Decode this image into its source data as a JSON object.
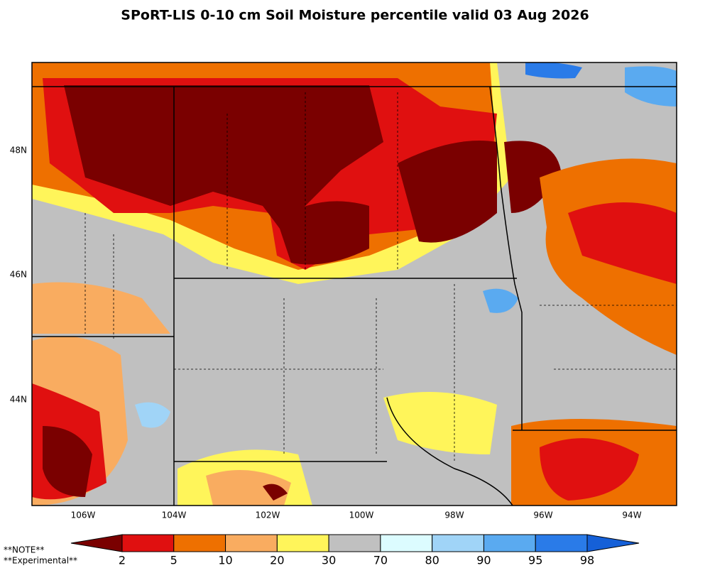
{
  "title": "SPoRT-LIS 0-10 cm Soil Moisture percentile valid 03 Aug 2026",
  "map": {
    "lat_labels": [
      "48N",
      "46N",
      "44N"
    ],
    "lon_labels": [
      "106W",
      "104W",
      "102W",
      "100W",
      "98W",
      "96W",
      "94W"
    ]
  },
  "colorbar": {
    "ticks": [
      2,
      5,
      10,
      20,
      30,
      70,
      80,
      90,
      95,
      98
    ],
    "colors": [
      "#7a0000",
      "#e01010",
      "#ee7000",
      "#f9ac60",
      "#fff55a",
      "#c0c0c0",
      "#dcfcff",
      "#a0d4f7",
      "#5aaaf0",
      "#2a7be8",
      "#1560d8"
    ]
  },
  "notes": [
    "**NOTE**",
    "**Experimental**"
  ]
}
